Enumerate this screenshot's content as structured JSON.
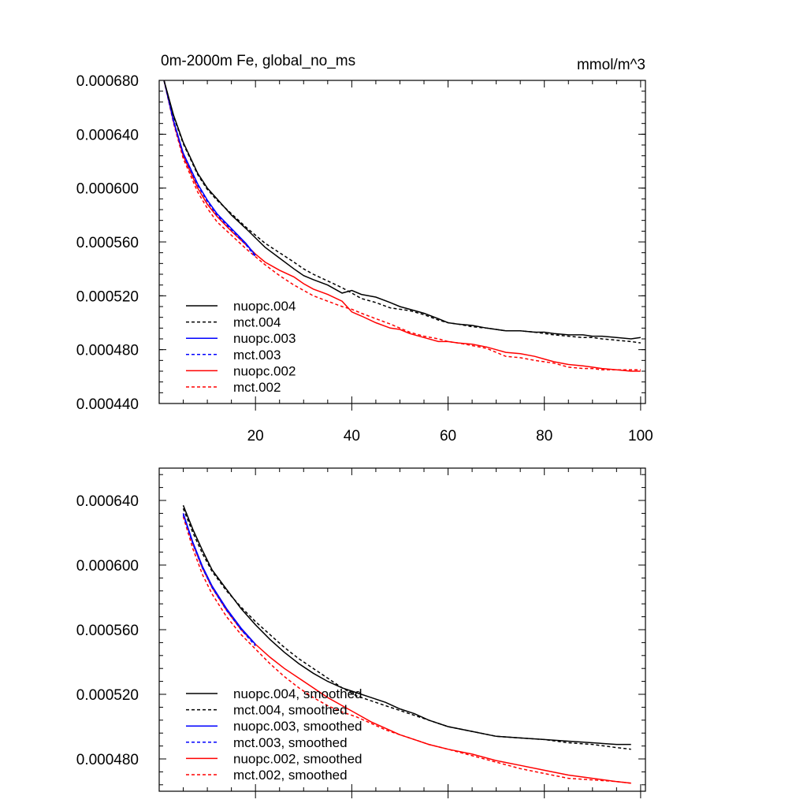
{
  "chart_data": [
    {
      "type": "line",
      "title": "0m-2000m Fe, global_no_ms",
      "units": "mmol/m^3",
      "xlim": [
        0,
        101
      ],
      "ylim": [
        0.00044,
        0.00068
      ],
      "xticks": [
        20,
        40,
        60,
        80,
        100
      ],
      "xtick_labels": [
        "20",
        "40",
        "60",
        "80",
        "100"
      ],
      "yticks": [
        0.00044,
        0.00048,
        0.00052,
        0.00056,
        0.0006,
        0.00064,
        0.00068
      ],
      "ytick_labels": [
        "0.000440",
        "0.000480",
        "0.000520",
        "0.000560",
        "0.000600",
        "0.000640",
        "0.000680"
      ],
      "legend_position": "bottom-left",
      "series": [
        {
          "name": "nuopc.004",
          "color": "#000000",
          "dash": "solid",
          "x": [
            1,
            3,
            5,
            8,
            10,
            12,
            15,
            18,
            20,
            22,
            25,
            28,
            30,
            32,
            35,
            38,
            40,
            42,
            45,
            48,
            50,
            52,
            55,
            58,
            60,
            62,
            65,
            68,
            70,
            72,
            75,
            78,
            80,
            82,
            85,
            88,
            90,
            92,
            95,
            98,
            100
          ],
          "y": [
            0.00068,
            0.000654,
            0.000634,
            0.000611,
            0.0006,
            0.000592,
            0.00058,
            0.00057,
            0.000563,
            0.000556,
            0.000548,
            0.00054,
            0.000535,
            0.000532,
            0.000528,
            0.000522,
            0.000524,
            0.000521,
            0.000519,
            0.000515,
            0.000512,
            0.00051,
            0.000507,
            0.000503,
            0.0005,
            0.000499,
            0.000498,
            0.000496,
            0.000495,
            0.000494,
            0.000494,
            0.000493,
            0.000493,
            0.000492,
            0.000491,
            0.000491,
            0.00049,
            0.00049,
            0.000489,
            0.000488,
            0.000489
          ]
        },
        {
          "name": "mct.004",
          "color": "#000000",
          "dash": "dashed",
          "x": [
            1,
            3,
            5,
            8,
            10,
            12,
            15,
            18,
            20,
            22,
            25,
            28,
            30,
            32,
            35,
            38,
            40,
            42,
            45,
            48,
            50,
            52,
            55,
            58,
            60,
            62,
            65,
            68,
            70,
            72,
            75,
            78,
            80,
            82,
            85,
            88,
            90,
            92,
            95,
            98,
            100
          ],
          "y": [
            0.00068,
            0.000653,
            0.000633,
            0.00061,
            0.000599,
            0.000591,
            0.000581,
            0.000571,
            0.000565,
            0.000559,
            0.000552,
            0.000545,
            0.00054,
            0.000536,
            0.000531,
            0.000526,
            0.000522,
            0.000518,
            0.000515,
            0.000511,
            0.00051,
            0.000509,
            0.000506,
            0.000502,
            0.0005,
            0.000499,
            0.000497,
            0.000496,
            0.000495,
            0.000494,
            0.000494,
            0.000493,
            0.000492,
            0.000491,
            0.00049,
            0.000489,
            0.000489,
            0.000488,
            0.000487,
            0.000486,
            0.000485
          ]
        },
        {
          "name": "nuopc.003",
          "color": "#0000ff",
          "dash": "solid",
          "x": [
            1,
            3,
            5,
            8,
            10,
            12,
            15,
            18,
            20
          ],
          "y": [
            0.00068,
            0.00065,
            0.000626,
            0.000603,
            0.000591,
            0.000581,
            0.00057,
            0.000559,
            0.00055
          ]
        },
        {
          "name": "mct.003",
          "color": "#0000ff",
          "dash": "dashed",
          "x": [
            1,
            3,
            5,
            8,
            10,
            12,
            15,
            18,
            20
          ],
          "y": [
            0.00068,
            0.000649,
            0.000625,
            0.000602,
            0.00059,
            0.00058,
            0.000569,
            0.000558,
            0.000549
          ]
        },
        {
          "name": "nuopc.002",
          "color": "#ff0000",
          "dash": "solid",
          "x": [
            1,
            3,
            5,
            8,
            10,
            12,
            15,
            18,
            20,
            22,
            25,
            28,
            30,
            32,
            35,
            38,
            40,
            42,
            45,
            48,
            50,
            52,
            55,
            58,
            60,
            62,
            65,
            68,
            70,
            72,
            75,
            78,
            80,
            82,
            85,
            88,
            90,
            92,
            95,
            98,
            100
          ],
          "y": [
            0.00068,
            0.000649,
            0.000624,
            0.0006,
            0.000588,
            0.000579,
            0.000568,
            0.000558,
            0.000551,
            0.000545,
            0.000539,
            0.000534,
            0.000529,
            0.000525,
            0.000521,
            0.000516,
            0.000508,
            0.000505,
            0.0005,
            0.000496,
            0.000495,
            0.000492,
            0.000489,
            0.000486,
            0.000486,
            0.000485,
            0.000484,
            0.000482,
            0.00048,
            0.000478,
            0.000477,
            0.000475,
            0.000473,
            0.000471,
            0.000469,
            0.000468,
            0.000467,
            0.000466,
            0.000465,
            0.000464,
            0.000464
          ]
        },
        {
          "name": "mct.002",
          "color": "#ff0000",
          "dash": "dashed",
          "x": [
            1,
            3,
            5,
            8,
            10,
            12,
            15,
            18,
            20,
            22,
            25,
            28,
            30,
            32,
            35,
            38,
            40,
            42,
            45,
            48,
            50,
            52,
            55,
            58,
            60,
            62,
            65,
            68,
            70,
            72,
            75,
            78,
            80,
            82,
            85,
            88,
            90,
            92,
            95,
            98,
            100
          ],
          "y": [
            0.00068,
            0.000648,
            0.000622,
            0.000597,
            0.000585,
            0.000575,
            0.000565,
            0.000555,
            0.000549,
            0.000543,
            0.000535,
            0.000528,
            0.000524,
            0.00052,
            0.000516,
            0.000512,
            0.00051,
            0.000507,
            0.000503,
            0.000499,
            0.000496,
            0.000493,
            0.00049,
            0.000488,
            0.000486,
            0.000485,
            0.000483,
            0.000481,
            0.000478,
            0.000475,
            0.000474,
            0.000472,
            0.000471,
            0.00047,
            0.000467,
            0.000466,
            0.000466,
            0.000465,
            0.000465,
            0.000465,
            0.000465
          ]
        }
      ]
    },
    {
      "type": "line",
      "title": "",
      "units": "",
      "xlim": [
        0,
        101
      ],
      "ylim": [
        0.00046,
        0.00066
      ],
      "xticks": [
        20,
        40,
        60,
        80,
        100
      ],
      "xtick_labels": [],
      "yticks": [
        0.00048,
        0.00052,
        0.00056,
        0.0006,
        0.00064
      ],
      "ytick_labels": [
        "0.000480",
        "0.000520",
        "0.000560",
        "0.000600",
        "0.000640"
      ],
      "legend_position": "bottom-left",
      "series": [
        {
          "name": "nuopc.004, smoothed",
          "color": "#000000",
          "dash": "solid",
          "x": [
            5,
            7,
            9,
            11,
            14,
            17,
            20,
            23,
            26,
            29,
            32,
            35,
            38,
            41,
            44,
            47,
            50,
            53,
            56,
            60,
            65,
            70,
            75,
            80,
            85,
            90,
            95,
            98
          ],
          "y": [
            0.000637,
            0.000622,
            0.000609,
            0.000597,
            0.000585,
            0.000573,
            0.000563,
            0.000554,
            0.000546,
            0.000539,
            0.000533,
            0.000528,
            0.000524,
            0.000521,
            0.000518,
            0.000515,
            0.000511,
            0.000508,
            0.000504,
            0.0005,
            0.000497,
            0.000494,
            0.000493,
            0.000492,
            0.000491,
            0.00049,
            0.000489,
            0.000489
          ]
        },
        {
          "name": "mct.004, smoothed",
          "color": "#000000",
          "dash": "dashed",
          "x": [
            5,
            7,
            9,
            11,
            14,
            17,
            20,
            23,
            26,
            29,
            32,
            35,
            38,
            41,
            44,
            47,
            50,
            53,
            56,
            60,
            65,
            70,
            75,
            80,
            85,
            90,
            95,
            98
          ],
          "y": [
            0.000635,
            0.00062,
            0.000607,
            0.000596,
            0.000584,
            0.000574,
            0.000565,
            0.000557,
            0.000549,
            0.000542,
            0.000536,
            0.00053,
            0.000524,
            0.000519,
            0.000516,
            0.000513,
            0.00051,
            0.000507,
            0.000504,
            0.0005,
            0.000497,
            0.000494,
            0.000493,
            0.000492,
            0.00049,
            0.000489,
            0.000487,
            0.000486
          ]
        },
        {
          "name": "nuopc.003, smoothed",
          "color": "#0000ff",
          "dash": "solid",
          "x": [
            5,
            7,
            9,
            11,
            14,
            17,
            20
          ],
          "y": [
            0.000632,
            0.000614,
            0.000599,
            0.000587,
            0.000573,
            0.000561,
            0.000551
          ]
        },
        {
          "name": "mct.003, smoothed",
          "color": "#0000ff",
          "dash": "dashed",
          "x": [
            5,
            7,
            9,
            11,
            14,
            17,
            20
          ],
          "y": [
            0.000631,
            0.000613,
            0.000598,
            0.000586,
            0.000572,
            0.00056,
            0.00055
          ]
        },
        {
          "name": "nuopc.002, smoothed",
          "color": "#ff0000",
          "dash": "solid",
          "x": [
            5,
            7,
            9,
            11,
            14,
            17,
            20,
            23,
            26,
            29,
            32,
            35,
            38,
            41,
            44,
            47,
            50,
            53,
            56,
            60,
            65,
            70,
            75,
            80,
            85,
            90,
            95,
            98
          ],
          "y": [
            0.000632,
            0.000613,
            0.000598,
            0.000586,
            0.000572,
            0.00056,
            0.000551,
            0.000543,
            0.000536,
            0.00053,
            0.000524,
            0.000518,
            0.000513,
            0.000508,
            0.000503,
            0.000499,
            0.000495,
            0.000492,
            0.000489,
            0.000486,
            0.000483,
            0.000479,
            0.000476,
            0.000473,
            0.00047,
            0.000468,
            0.000466,
            0.000465
          ]
        },
        {
          "name": "mct.002, smoothed",
          "color": "#ff0000",
          "dash": "dashed",
          "x": [
            5,
            7,
            9,
            11,
            14,
            17,
            20,
            23,
            26,
            29,
            32,
            35,
            38,
            41,
            44,
            47,
            50,
            53,
            56,
            60,
            65,
            70,
            75,
            80,
            85,
            90,
            95,
            98
          ],
          "y": [
            0.00063,
            0.00061,
            0.000594,
            0.000582,
            0.000568,
            0.000557,
            0.000548,
            0.000539,
            0.000531,
            0.000524,
            0.000518,
            0.000513,
            0.000509,
            0.000506,
            0.000502,
            0.000498,
            0.000495,
            0.000492,
            0.000489,
            0.000486,
            0.000482,
            0.000478,
            0.000474,
            0.000471,
            0.000468,
            0.000467,
            0.000466,
            0.000465
          ]
        }
      ]
    }
  ]
}
